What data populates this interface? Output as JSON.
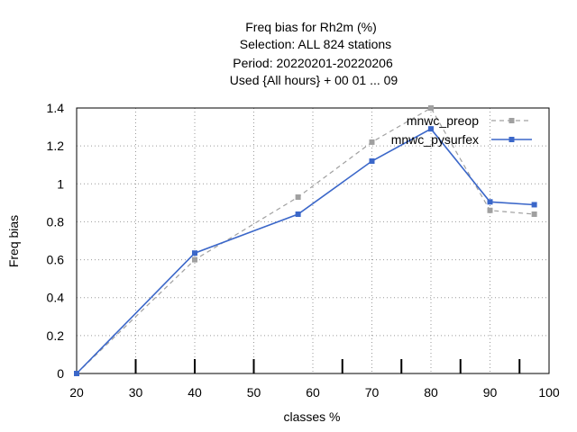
{
  "chart_data": {
    "type": "line",
    "title_lines": [
      "Freq bias  for Rh2m (%)",
      "Selection: ALL    824 stations",
      "Period: 20220201-20220206",
      "Used {All hours} + 00 01 ... 09"
    ],
    "xlabel": "classes %",
    "ylabel": "Freq bias",
    "xlim": [
      20,
      100
    ],
    "ylim": [
      0,
      1.4
    ],
    "xticks": [
      20,
      30,
      40,
      50,
      60,
      70,
      80,
      90,
      100
    ],
    "yticks": [
      0,
      0.2,
      0.4,
      0.6,
      0.8,
      1,
      1.2,
      1.4
    ],
    "xtick_labels": [
      "20",
      "30",
      "40",
      "50",
      "60",
      "70",
      "80",
      "90",
      "100"
    ],
    "ytick_labels": [
      "0",
      "0.2",
      "0.4",
      "0.6",
      "0.8",
      "1",
      "1.2",
      "1.4"
    ],
    "bottom_marks": [
      30,
      40,
      50,
      65,
      75,
      85,
      95
    ],
    "grid": true,
    "legend_position": "top-right",
    "series": [
      {
        "name": "mnwc_preop",
        "color": "#a0a0a0",
        "dashed": true,
        "x": [
          20,
          40,
          57.5,
          70,
          80,
          90,
          97.5
        ],
        "y": [
          0.0,
          0.6,
          0.93,
          1.22,
          1.4,
          0.86,
          0.84
        ]
      },
      {
        "name": "mnwc_pysurfex",
        "color": "#3b67c9",
        "dashed": false,
        "x": [
          20,
          40,
          57.5,
          70,
          80,
          90,
          97.5
        ],
        "y": [
          0.0,
          0.635,
          0.84,
          1.12,
          1.29,
          0.905,
          0.89
        ]
      }
    ]
  }
}
